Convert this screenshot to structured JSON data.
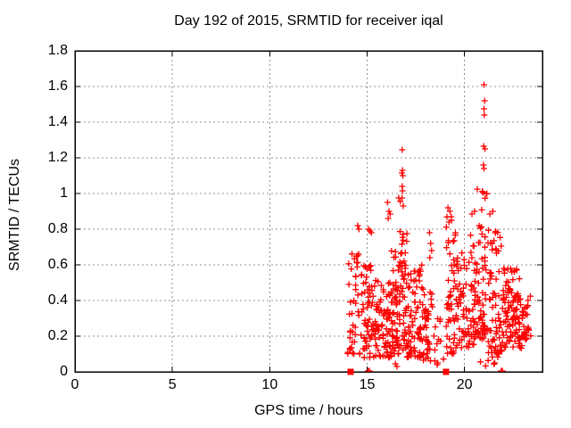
{
  "chart_data": {
    "type": "scatter",
    "title": "Day 192 of 2015, SRMTID for receiver iqal",
    "xlabel": "GPS time / hours",
    "ylabel": "SRMTID / TECUs",
    "xlim": [
      0,
      24
    ],
    "ylim": [
      0,
      1.8
    ],
    "xticks": [
      0,
      5,
      10,
      15,
      20
    ],
    "xtick_labels": [
      "0",
      "5",
      "10",
      "15",
      "20"
    ],
    "yticks": [
      0,
      0.2,
      0.4,
      0.6,
      0.8,
      1.0,
      1.2,
      1.4,
      1.6,
      1.8
    ],
    "ytick_labels": [
      "0",
      "0.2",
      "0.4",
      "0.6",
      "0.8",
      "1",
      "1.2",
      "1.4",
      "1.6",
      "1.8"
    ],
    "grid": true,
    "grid_color": "#909090",
    "axis_color": "#000000",
    "background_color": "#ffffff",
    "legend": "none",
    "seed": 7,
    "series": [
      {
        "name": "SRMTID",
        "marker": "plus",
        "color": "#ff0000",
        "points": [
          [
            16.8,
            1.245
          ],
          [
            16.82,
            1.13
          ],
          [
            16.78,
            1.115
          ],
          [
            16.83,
            1.1
          ],
          [
            16.8,
            1.04
          ],
          [
            16.82,
            1.015
          ],
          [
            16.79,
            0.975
          ],
          [
            16.85,
            0.93
          ],
          [
            16.7,
            0.955
          ],
          [
            16.62,
            0.975
          ],
          [
            16.05,
            0.95
          ],
          [
            16.12,
            0.9
          ],
          [
            16.18,
            0.885
          ],
          [
            16.08,
            0.86
          ],
          [
            14.52,
            0.82
          ],
          [
            14.58,
            0.8
          ],
          [
            15.07,
            0.8
          ],
          [
            15.15,
            0.79
          ],
          [
            15.22,
            0.78
          ],
          [
            18.2,
            0.78
          ],
          [
            18.26,
            0.72
          ],
          [
            18.31,
            0.68
          ],
          [
            18.22,
            0.64
          ],
          [
            19.15,
            0.92
          ],
          [
            19.25,
            0.9
          ],
          [
            19.32,
            0.87
          ],
          [
            19.2,
            0.84
          ],
          [
            20.38,
            0.885
          ],
          [
            20.52,
            0.9
          ],
          [
            21.0,
            1.61
          ],
          [
            21.03,
            1.52
          ],
          [
            21.0,
            1.475
          ],
          [
            21.02,
            1.44
          ],
          [
            20.98,
            1.265
          ],
          [
            21.05,
            1.25
          ],
          [
            20.97,
            1.16
          ],
          [
            21.0,
            1.14
          ],
          [
            21.45,
            0.9
          ],
          [
            21.3,
            0.885
          ],
          [
            16.53,
            0.03
          ],
          [
            16.45,
            0.045
          ],
          [
            18.6,
            0.04
          ],
          [
            21.55,
            0.05
          ],
          [
            15.05,
            0.005
          ],
          [
            15.12,
            0.005
          ],
          [
            21.88,
            0.005
          ],
          [
            21.95,
            0.005
          ]
        ],
        "clusters": [
          {
            "x0": 14.0,
            "x1": 14.75,
            "ymin": 0.1,
            "ymax": 0.68,
            "n": 48,
            "bias": 1.5
          },
          {
            "x0": 14.75,
            "x1": 15.35,
            "ymin": 0.08,
            "ymax": 0.6,
            "n": 55,
            "bias": 1.7
          },
          {
            "x0": 15.35,
            "x1": 16.25,
            "ymin": 0.08,
            "ymax": 0.52,
            "n": 80,
            "bias": 1.5
          },
          {
            "x0": 16.25,
            "x1": 16.65,
            "ymin": 0.1,
            "ymax": 0.7,
            "n": 55,
            "bias": 1.6
          },
          {
            "x0": 16.65,
            "x1": 17.05,
            "ymin": 0.12,
            "ymax": 0.82,
            "n": 50,
            "bias": 1.7
          },
          {
            "x0": 17.05,
            "x1": 17.85,
            "ymin": 0.08,
            "ymax": 0.6,
            "n": 80,
            "bias": 1.5
          },
          {
            "x0": 17.85,
            "x1": 18.35,
            "ymin": 0.06,
            "ymax": 0.48,
            "n": 40,
            "bias": 1.4
          },
          {
            "x0": 18.4,
            "x1": 18.98,
            "ymin": 0.05,
            "ymax": 0.3,
            "n": 12,
            "bias": 1.2
          },
          {
            "x0": 19.0,
            "x1": 19.6,
            "ymin": 0.1,
            "ymax": 0.88,
            "n": 55,
            "bias": 1.7
          },
          {
            "x0": 19.6,
            "x1": 20.25,
            "ymin": 0.12,
            "ymax": 0.68,
            "n": 50,
            "bias": 1.4
          },
          {
            "x0": 20.25,
            "x1": 20.65,
            "ymin": 0.15,
            "ymax": 0.78,
            "n": 38,
            "bias": 1.4
          },
          {
            "x0": 20.65,
            "x1": 21.2,
            "ymin": 0.18,
            "ymax": 1.1,
            "n": 60,
            "bias": 1.6
          },
          {
            "x0": 21.2,
            "x1": 21.95,
            "ymin": 0.1,
            "ymax": 0.8,
            "n": 70,
            "bias": 1.5
          },
          {
            "x0": 21.95,
            "x1": 22.95,
            "ymin": 0.13,
            "ymax": 0.58,
            "n": 105,
            "bias": 1.1
          },
          {
            "x0": 22.95,
            "x1": 23.45,
            "ymin": 0.18,
            "ymax": 0.45,
            "n": 28,
            "bias": 1.1
          },
          {
            "x0": 20.3,
            "x1": 22.3,
            "ymin": 0.03,
            "ymax": 0.1,
            "n": 6,
            "bias": 1.0
          }
        ]
      },
      {
        "name": "flag markers",
        "marker": "filled-square",
        "color": "#ff0000",
        "points": [
          [
            14.15,
            0
          ],
          [
            19.05,
            0
          ]
        ]
      }
    ]
  },
  "layout_note": ""
}
